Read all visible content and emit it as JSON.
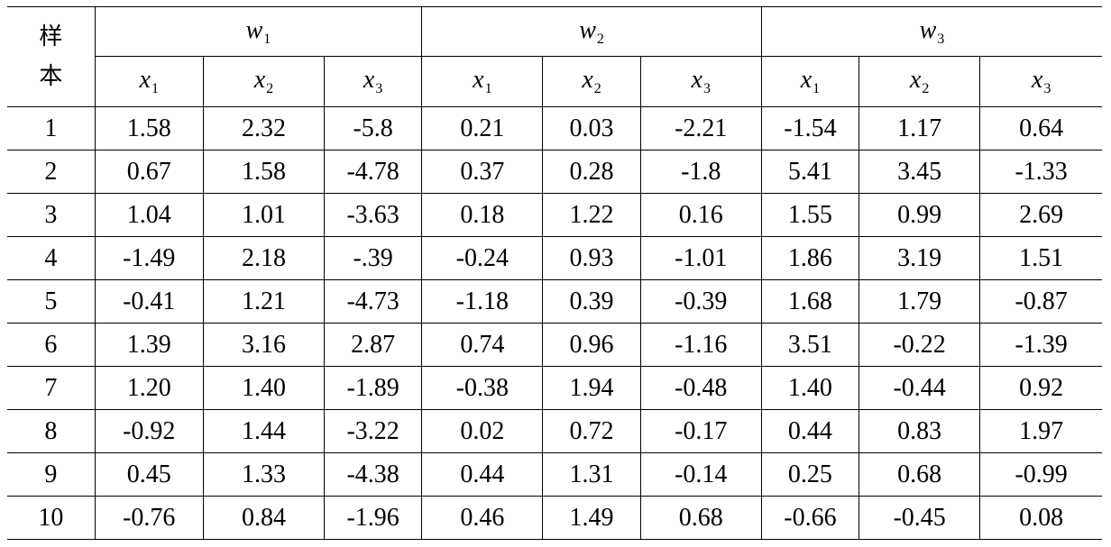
{
  "table": {
    "corner_label_line1": "样",
    "corner_label_line2": "本",
    "groups": [
      {
        "name": "w",
        "sub": "1"
      },
      {
        "name": "w",
        "sub": "2"
      },
      {
        "name": "w",
        "sub": "3"
      }
    ],
    "features": [
      {
        "name": "x",
        "sub": "1"
      },
      {
        "name": "x",
        "sub": "2"
      },
      {
        "name": "x",
        "sub": "3"
      },
      {
        "name": "x",
        "sub": "1"
      },
      {
        "name": "x",
        "sub": "2"
      },
      {
        "name": "x",
        "sub": "3"
      },
      {
        "name": "x",
        "sub": "1"
      },
      {
        "name": "x",
        "sub": "2"
      },
      {
        "name": "x",
        "sub": "3"
      }
    ],
    "rows": [
      {
        "sample": "1",
        "values": [
          "1.58",
          "2.32",
          "-5.8",
          "0.21",
          "0.03",
          "-2.21",
          "-1.54",
          "1.17",
          "0.64"
        ]
      },
      {
        "sample": "2",
        "values": [
          "0.67",
          "1.58",
          "-4.78",
          "0.37",
          "0.28",
          "-1.8",
          "5.41",
          "3.45",
          "-1.33"
        ]
      },
      {
        "sample": "3",
        "values": [
          "1.04",
          "1.01",
          "-3.63",
          "0.18",
          "1.22",
          "0.16",
          "1.55",
          "0.99",
          "2.69"
        ]
      },
      {
        "sample": "4",
        "values": [
          "-1.49",
          "2.18",
          "-.39",
          "-0.24",
          "0.93",
          "-1.01",
          "1.86",
          "3.19",
          "1.51"
        ]
      },
      {
        "sample": "5",
        "values": [
          "-0.41",
          "1.21",
          "-4.73",
          "-1.18",
          "0.39",
          "-0.39",
          "1.68",
          "1.79",
          "-0.87"
        ]
      },
      {
        "sample": "6",
        "values": [
          "1.39",
          "3.16",
          "2.87",
          "0.74",
          "0.96",
          "-1.16",
          "3.51",
          "-0.22",
          "-1.39"
        ]
      },
      {
        "sample": "7",
        "values": [
          "1.20",
          "1.40",
          "-1.89",
          "-0.38",
          "1.94",
          "-0.48",
          "1.40",
          "-0.44",
          "0.92"
        ]
      },
      {
        "sample": "8",
        "values": [
          "-0.92",
          "1.44",
          "-3.22",
          "0.02",
          "0.72",
          "-0.17",
          "0.44",
          "0.83",
          "1.97"
        ]
      },
      {
        "sample": "9",
        "values": [
          "0.45",
          "1.33",
          "-4.38",
          "0.44",
          "1.31",
          "-0.14",
          "0.25",
          "0.68",
          "-0.99"
        ]
      },
      {
        "sample": "10",
        "values": [
          "-0.76",
          "0.84",
          "-1.96",
          "0.46",
          "1.49",
          "0.68",
          "-0.66",
          "-0.45",
          "0.08"
        ]
      }
    ]
  }
}
